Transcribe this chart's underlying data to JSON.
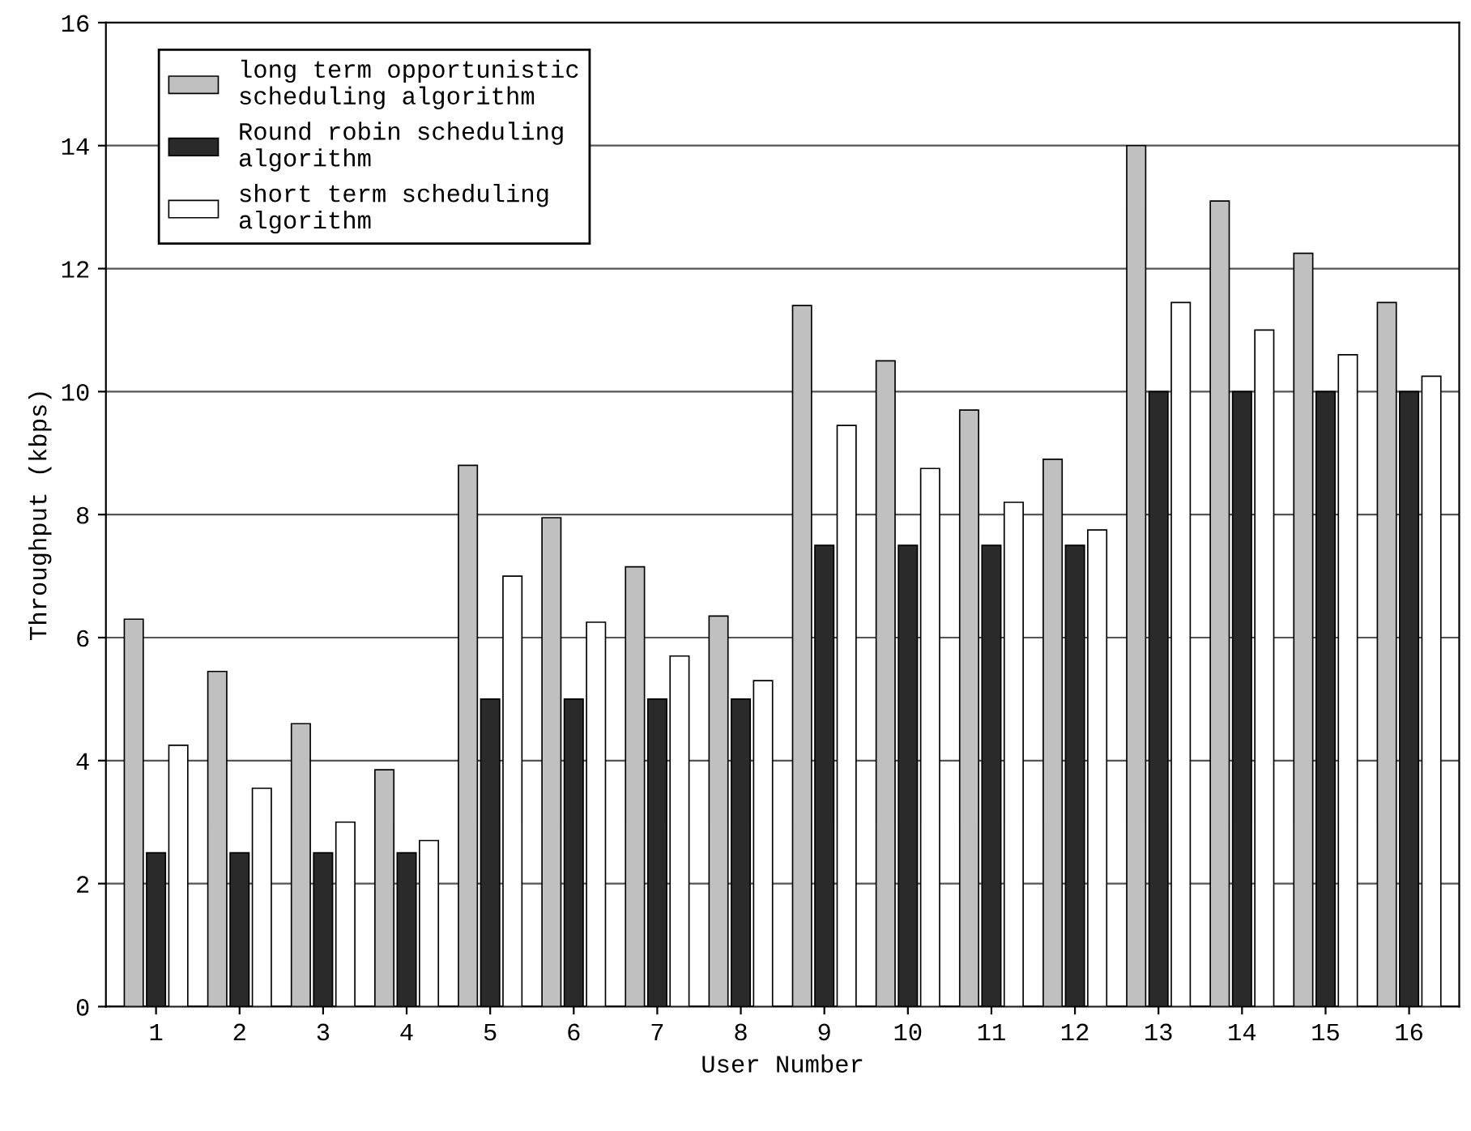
{
  "chart_data": {
    "type": "bar",
    "xlabel": "User Number",
    "ylabel": "Throughput (kbps)",
    "categories": [
      "1",
      "2",
      "3",
      "4",
      "5",
      "6",
      "7",
      "8",
      "9",
      "10",
      "11",
      "12",
      "13",
      "14",
      "15",
      "16"
    ],
    "series": [
      {
        "name": "long term opportunistic\nscheduling algorithm",
        "color": "#c0c0c0",
        "values": [
          6.3,
          5.45,
          4.6,
          3.85,
          8.8,
          7.95,
          7.15,
          6.35,
          11.4,
          10.5,
          9.7,
          8.9,
          14.0,
          13.1,
          12.25,
          11.45
        ]
      },
      {
        "name": "Round robin scheduling\nalgorithm",
        "color": "#2a2a2a",
        "values": [
          2.5,
          2.5,
          2.5,
          2.5,
          5.0,
          5.0,
          5.0,
          5.0,
          7.5,
          7.5,
          7.5,
          7.5,
          10.0,
          10.0,
          10.0,
          10.0
        ]
      },
      {
        "name": "short term scheduling\nalgorithm",
        "color": "#ffffff",
        "values": [
          4.25,
          3.55,
          3.0,
          2.7,
          7.0,
          6.25,
          5.7,
          5.3,
          9.45,
          8.75,
          8.2,
          7.75,
          11.45,
          11.0,
          10.6,
          10.25
        ]
      }
    ],
    "ylim": [
      0,
      16
    ],
    "yticks": [
      0,
      2,
      4,
      6,
      8,
      10,
      12,
      14,
      16
    ],
    "grid": "y",
    "legend": "top left"
  }
}
